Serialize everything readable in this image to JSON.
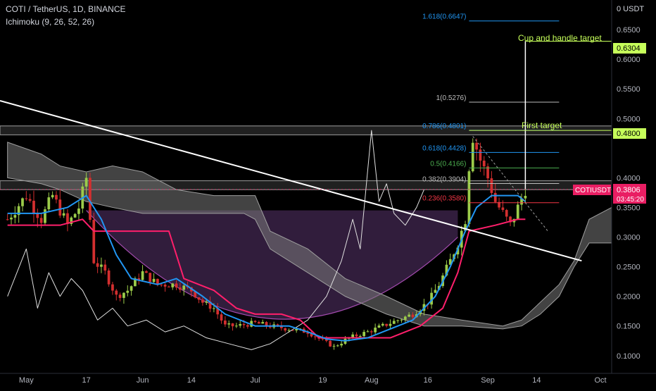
{
  "header": {
    "title": "COTI / TetherUS, 1D, BINANCE",
    "indicator": "Ichimoku (9, 26, 52, 26)"
  },
  "price_axis": {
    "currency_label": "0 USDT",
    "ticks": [
      "0.6500",
      "0.6000",
      "0.5500",
      "0.5000",
      "0.4000",
      "0.3500",
      "0.3000",
      "0.2500",
      "0.2000",
      "0.1500",
      "0.1000"
    ]
  },
  "time_axis": {
    "labels": [
      "May",
      "17",
      "Jun",
      "14",
      "Jul",
      "19",
      "Aug",
      "16",
      "Sep",
      "14",
      "Oct"
    ]
  },
  "fib_labels": [
    {
      "text": "1.618(0.6647)",
      "price": 0.6647,
      "color": "#2196f3"
    },
    {
      "text": "1(0.5276)",
      "price": 0.5276,
      "color": "#bdbdbd"
    },
    {
      "text": "0.786(0.4801)",
      "price": 0.4801,
      "color": "#2196f3"
    },
    {
      "text": "0.618(0.4428)",
      "price": 0.4428,
      "color": "#2196f3"
    },
    {
      "text": "0.5(0.4166)",
      "price": 0.4166,
      "color": "#4caf50"
    },
    {
      "text": "0.382(0.3904)",
      "price": 0.3904,
      "color": "#bdbdbd"
    },
    {
      "text": "0.236(0.3580)",
      "price": 0.358,
      "color": "#f23645"
    }
  ],
  "annotations": {
    "cup_handle": "Cup and handle target",
    "first_target": "First target"
  },
  "price_badges": {
    "target_cup": "0.6304",
    "target_first": "0.4800",
    "symbol": "COTIUSDT",
    "last_price": "0.3806",
    "countdown": "03:45:20"
  },
  "colors": {
    "background": "#000000",
    "tenkan": "#2196f3",
    "kijun": "#ff1f6b",
    "lagging": "#e0e0e0",
    "cloud": "#7a7a7a",
    "green_candle": "#9ccc4a",
    "red_candle": "#d32f2f",
    "cup_fill": "#3a2247",
    "cup_outline": "#a24aad",
    "target_green": "#76ff03",
    "last_price_badge": "#e91e63"
  },
  "chart_data": {
    "type": "candlestick",
    "symbol": "COTIUSDT",
    "timeframe": "1D",
    "exchange": "BINANCE",
    "x_range": [
      "2021-04-24",
      "2021-10-04"
    ],
    "y_range": [
      0.07,
      0.7
    ],
    "last_price": 0.3806,
    "fibonacci_levels": [
      {
        "ratio": 1.618,
        "price": 0.6647
      },
      {
        "ratio": 1,
        "price": 0.5276
      },
      {
        "ratio": 0.786,
        "price": 0.4801
      },
      {
        "ratio": 0.618,
        "price": 0.4428
      },
      {
        "ratio": 0.5,
        "price": 0.4166
      },
      {
        "ratio": 0.382,
        "price": 0.3904
      },
      {
        "ratio": 0.236,
        "price": 0.358
      }
    ],
    "targets": [
      {
        "label": "Cup and handle target",
        "price": 0.6304
      },
      {
        "label": "First target",
        "price": 0.48
      }
    ],
    "trendline": {
      "start": [
        "2021-04-24",
        0.53
      ],
      "end": [
        "2021-09-26",
        0.26
      ]
    },
    "resistance_zones": [
      [
        0.4725,
        0.4875
      ],
      [
        0.38,
        0.395
      ]
    ],
    "cup_rim": 0.345,
    "price_path": [
      [
        "2021-04-26",
        0.33
      ],
      [
        "2021-05-01",
        0.37
      ],
      [
        "2021-05-05",
        0.33
      ],
      [
        "2021-05-08",
        0.37
      ],
      [
        "2021-05-12",
        0.32
      ],
      [
        "2021-05-15",
        0.35
      ],
      [
        "2021-05-17",
        0.4
      ],
      [
        "2021-05-19",
        0.26
      ],
      [
        "2021-05-22",
        0.24
      ],
      [
        "2021-05-25",
        0.2
      ],
      [
        "2021-05-28",
        0.21
      ],
      [
        "2021-06-01",
        0.24
      ],
      [
        "2021-06-05",
        0.22
      ],
      [
        "2021-06-10",
        0.22
      ],
      [
        "2021-06-14",
        0.21
      ],
      [
        "2021-06-17",
        0.19
      ],
      [
        "2021-06-20",
        0.18
      ],
      [
        "2021-06-23",
        0.15
      ],
      [
        "2021-06-26",
        0.15
      ],
      [
        "2021-07-01",
        0.155
      ],
      [
        "2021-07-05",
        0.15
      ],
      [
        "2021-07-10",
        0.145
      ],
      [
        "2021-07-15",
        0.14
      ],
      [
        "2021-07-19",
        0.125
      ],
      [
        "2021-07-22",
        0.115
      ],
      [
        "2021-07-26",
        0.13
      ],
      [
        "2021-07-31",
        0.14
      ],
      [
        "2021-08-04",
        0.15
      ],
      [
        "2021-08-08",
        0.16
      ],
      [
        "2021-08-12",
        0.17
      ],
      [
        "2021-08-16",
        0.19
      ],
      [
        "2021-08-19",
        0.22
      ],
      [
        "2021-08-22",
        0.26
      ],
      [
        "2021-08-24",
        0.29
      ],
      [
        "2021-08-26",
        0.33
      ],
      [
        "2021-08-27",
        0.42
      ],
      [
        "2021-08-28",
        0.47
      ],
      [
        "2021-08-30",
        0.43
      ],
      [
        "2021-09-01",
        0.4
      ],
      [
        "2021-09-03",
        0.36
      ],
      [
        "2021-09-05",
        0.34
      ],
      [
        "2021-09-07",
        0.32
      ],
      [
        "2021-09-09",
        0.35
      ],
      [
        "2021-09-11",
        0.3806
      ]
    ],
    "tenkan_sen": [
      [
        "2021-04-26",
        0.34
      ],
      [
        "2021-05-05",
        0.34
      ],
      [
        "2021-05-12",
        0.35
      ],
      [
        "2021-05-17",
        0.37
      ],
      [
        "2021-05-21",
        0.33
      ],
      [
        "2021-05-25",
        0.27
      ],
      [
        "2021-05-29",
        0.23
      ],
      [
        "2021-06-05",
        0.22
      ],
      [
        "2021-06-10",
        0.23
      ],
      [
        "2021-06-17",
        0.2
      ],
      [
        "2021-06-23",
        0.17
      ],
      [
        "2021-07-01",
        0.15
      ],
      [
        "2021-07-10",
        0.15
      ],
      [
        "2021-07-15",
        0.14
      ],
      [
        "2021-07-20",
        0.128
      ],
      [
        "2021-07-25",
        0.125
      ],
      [
        "2021-07-31",
        0.13
      ],
      [
        "2021-08-06",
        0.145
      ],
      [
        "2021-08-12",
        0.16
      ],
      [
        "2021-08-18",
        0.2
      ],
      [
        "2021-08-22",
        0.25
      ],
      [
        "2021-08-26",
        0.31
      ],
      [
        "2021-08-29",
        0.35
      ],
      [
        "2021-09-02",
        0.37
      ],
      [
        "2021-09-06",
        0.37
      ],
      [
        "2021-09-09",
        0.37
      ],
      [
        "2021-09-11",
        0.36
      ]
    ],
    "kijun_sen": [
      [
        "2021-04-26",
        0.32
      ],
      [
        "2021-05-10",
        0.32
      ],
      [
        "2021-05-16",
        0.33
      ],
      [
        "2021-05-19",
        0.31
      ],
      [
        "2021-05-28",
        0.31
      ],
      [
        "2021-06-08",
        0.31
      ],
      [
        "2021-06-12",
        0.23
      ],
      [
        "2021-06-20",
        0.21
      ],
      [
        "2021-06-26",
        0.18
      ],
      [
        "2021-07-01",
        0.17
      ],
      [
        "2021-07-08",
        0.17
      ],
      [
        "2021-07-13",
        0.16
      ],
      [
        "2021-07-18",
        0.13
      ],
      [
        "2021-07-30",
        0.13
      ],
      [
        "2021-08-06",
        0.13
      ],
      [
        "2021-08-14",
        0.15
      ],
      [
        "2021-08-20",
        0.18
      ],
      [
        "2021-08-24",
        0.24
      ],
      [
        "2021-08-27",
        0.31
      ],
      [
        "2021-09-03",
        0.32
      ],
      [
        "2021-09-09",
        0.33
      ],
      [
        "2021-09-11",
        0.33
      ]
    ],
    "chikou_span": [
      [
        "2021-04-26",
        0.2
      ],
      [
        "2021-05-01",
        0.28
      ],
      [
        "2021-05-04",
        0.18
      ],
      [
        "2021-05-07",
        0.24
      ],
      [
        "2021-05-10",
        0.2
      ],
      [
        "2021-05-13",
        0.23
      ],
      [
        "2021-05-16",
        0.21
      ],
      [
        "2021-05-20",
        0.16
      ],
      [
        "2021-05-24",
        0.18
      ],
      [
        "2021-05-28",
        0.15
      ],
      [
        "2021-06-02",
        0.16
      ],
      [
        "2021-06-07",
        0.14
      ],
      [
        "2021-06-12",
        0.15
      ],
      [
        "2021-06-18",
        0.13
      ],
      [
        "2021-06-24",
        0.12
      ],
      [
        "2021-06-30",
        0.11
      ],
      [
        "2021-07-05",
        0.12
      ],
      [
        "2021-07-10",
        0.14
      ],
      [
        "2021-07-15",
        0.16
      ],
      [
        "2021-07-20",
        0.2
      ],
      [
        "2021-07-24",
        0.26
      ],
      [
        "2021-07-27",
        0.33
      ],
      [
        "2021-07-29",
        0.28
      ],
      [
        "2021-08-01",
        0.48
      ],
      [
        "2021-08-03",
        0.36
      ],
      [
        "2021-08-05",
        0.39
      ],
      [
        "2021-08-07",
        0.34
      ],
      [
        "2021-08-10",
        0.32
      ],
      [
        "2021-08-13",
        0.35
      ],
      [
        "2021-08-15",
        0.38
      ]
    ],
    "cloud_upper": [
      [
        "2021-04-26",
        0.46
      ],
      [
        "2021-05-05",
        0.44
      ],
      [
        "2021-05-10",
        0.42
      ],
      [
        "2021-05-17",
        0.41
      ],
      [
        "2021-05-24",
        0.42
      ],
      [
        "2021-06-01",
        0.41
      ],
      [
        "2021-06-10",
        0.38
      ],
      [
        "2021-06-20",
        0.37
      ],
      [
        "2021-06-28",
        0.37
      ],
      [
        "2021-07-01",
        0.37
      ],
      [
        "2021-07-05",
        0.31
      ],
      [
        "2021-07-15",
        0.28
      ],
      [
        "2021-07-25",
        0.23
      ],
      [
        "2021-08-05",
        0.2
      ],
      [
        "2021-08-15",
        0.17
      ],
      [
        "2021-08-25",
        0.16
      ],
      [
        "2021-09-05",
        0.15
      ],
      [
        "2021-09-10",
        0.16
      ],
      [
        "2021-09-15",
        0.19
      ],
      [
        "2021-09-20",
        0.22
      ],
      [
        "2021-09-24",
        0.26
      ],
      [
        "2021-09-28",
        0.33
      ],
      [
        "2021-10-04",
        0.35
      ]
    ],
    "cloud_lower": [
      [
        "2021-04-26",
        0.4
      ],
      [
        "2021-05-05",
        0.39
      ],
      [
        "2021-05-10",
        0.38
      ],
      [
        "2021-05-17",
        0.36
      ],
      [
        "2021-05-24",
        0.35
      ],
      [
        "2021-06-01",
        0.34
      ],
      [
        "2021-06-10",
        0.34
      ],
      [
        "2021-06-20",
        0.34
      ],
      [
        "2021-06-28",
        0.34
      ],
      [
        "2021-07-01",
        0.33
      ],
      [
        "2021-07-05",
        0.28
      ],
      [
        "2021-07-15",
        0.24
      ],
      [
        "2021-07-25",
        0.2
      ],
      [
        "2021-08-05",
        0.17
      ],
      [
        "2021-08-15",
        0.15
      ],
      [
        "2021-08-25",
        0.15
      ],
      [
        "2021-09-05",
        0.145
      ],
      [
        "2021-09-10",
        0.15
      ],
      [
        "2021-09-15",
        0.17
      ],
      [
        "2021-09-20",
        0.2
      ],
      [
        "2021-09-24",
        0.25
      ],
      [
        "2021-09-28",
        0.29
      ],
      [
        "2021-10-04",
        0.29
      ]
    ]
  }
}
